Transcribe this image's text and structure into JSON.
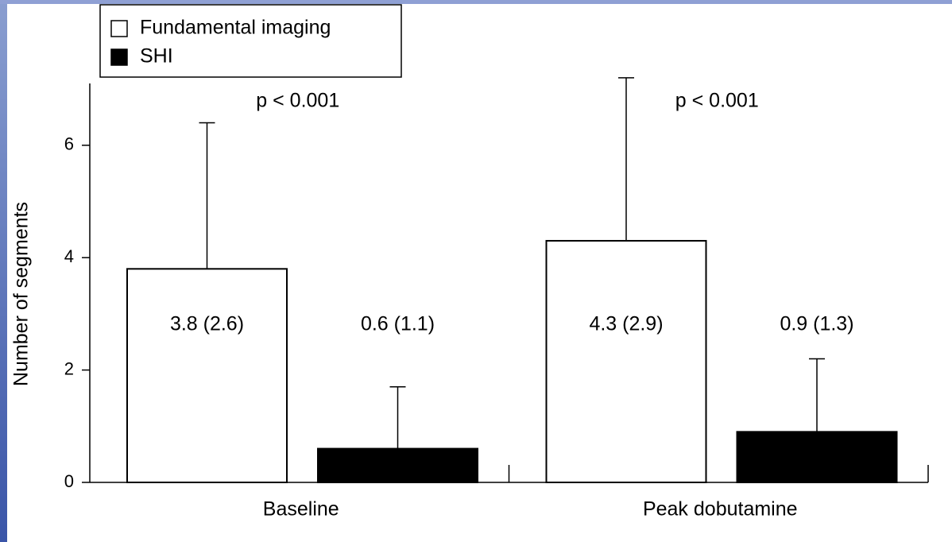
{
  "chart_data": {
    "type": "bar",
    "categories": [
      "Baseline",
      "Peak dobutamine"
    ],
    "y_label": "Number of segments",
    "series": [
      {
        "name": "Fundamental imaging",
        "color": "#ffffff",
        "values": [
          3.8,
          4.3
        ],
        "errors": [
          2.6,
          2.9
        ],
        "value_labels": [
          "3.8 (2.6)",
          "4.3 (2.9)"
        ]
      },
      {
        "name": "SHI",
        "color": "#000000",
        "values": [
          0.6,
          0.9
        ],
        "errors": [
          1.1,
          1.3
        ],
        "value_labels": [
          "0.6 (1.1)",
          "0.9 (1.3)"
        ]
      }
    ],
    "annotations": [
      "p < 0.001",
      "p < 0.001"
    ],
    "ylim": [
      0,
      7.1
    ],
    "yticks": [
      0,
      2,
      4,
      6
    ],
    "grid": false,
    "legend": "top-left"
  }
}
